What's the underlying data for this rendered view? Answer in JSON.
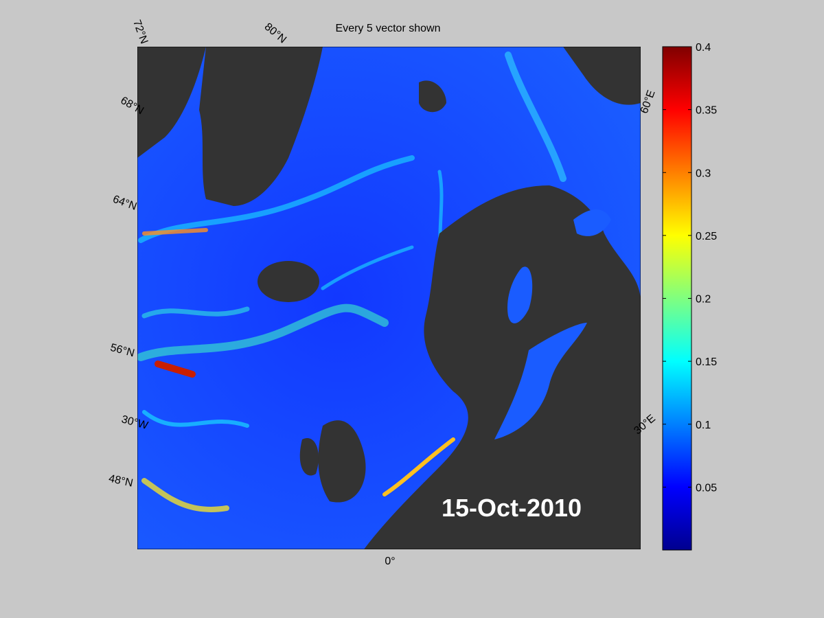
{
  "map": {
    "title": "Every 5 vector shown",
    "date": "15-Oct-2010",
    "graticule_labels": [
      "72°N",
      "80°N",
      "68°N",
      "64°N",
      "56°N",
      "30°W",
      "48°N",
      "0°",
      "60°E",
      "30°E"
    ]
  },
  "colorbar": {
    "ylim": [
      0,
      0.4
    ],
    "yticks": [
      0.05,
      0.1,
      0.15,
      0.2,
      0.25,
      0.3,
      0.35,
      0.4
    ]
  }
}
